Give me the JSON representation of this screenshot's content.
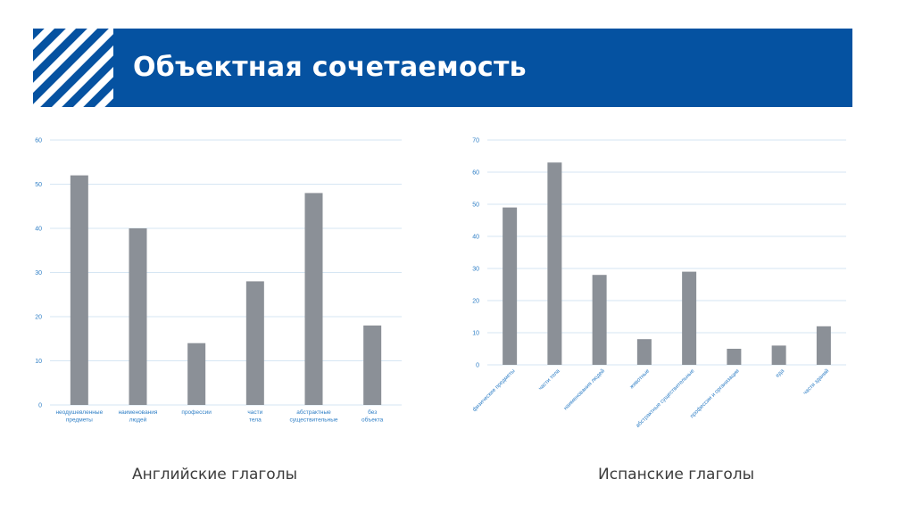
{
  "slide": {
    "title": "Объектная сочетаемость",
    "accent_color": "#0552a1",
    "bar_color": "#8b9097",
    "grid_color": "#d6e6f3",
    "label_color": "#2f7fc6"
  },
  "chart_data": [
    {
      "type": "bar",
      "caption": "Английские глаголы",
      "categories": [
        "неодушевленные предметы",
        "наименования людей",
        "профессии",
        "части тела",
        "абстрактные существительные",
        "без объекта"
      ],
      "values": [
        52,
        40,
        14,
        28,
        48,
        18
      ],
      "ylim": [
        0,
        60
      ],
      "yticks": [
        0,
        10,
        20,
        30,
        40,
        50,
        60
      ],
      "grid": true,
      "xlabel_rotation": 0
    },
    {
      "type": "bar",
      "caption": "Испанские глаголы",
      "categories": [
        "физические предметы",
        "части тела",
        "наименования людей",
        "животные",
        "абстрактные существительные",
        "профессии и организации",
        "еда",
        "части зданий"
      ],
      "values": [
        49,
        63,
        28,
        8,
        29,
        5,
        6,
        12
      ],
      "ylim": [
        0,
        70
      ],
      "yticks": [
        0,
        10,
        20,
        30,
        40,
        50,
        60,
        70
      ],
      "grid": true,
      "xlabel_rotation": -45
    }
  ]
}
